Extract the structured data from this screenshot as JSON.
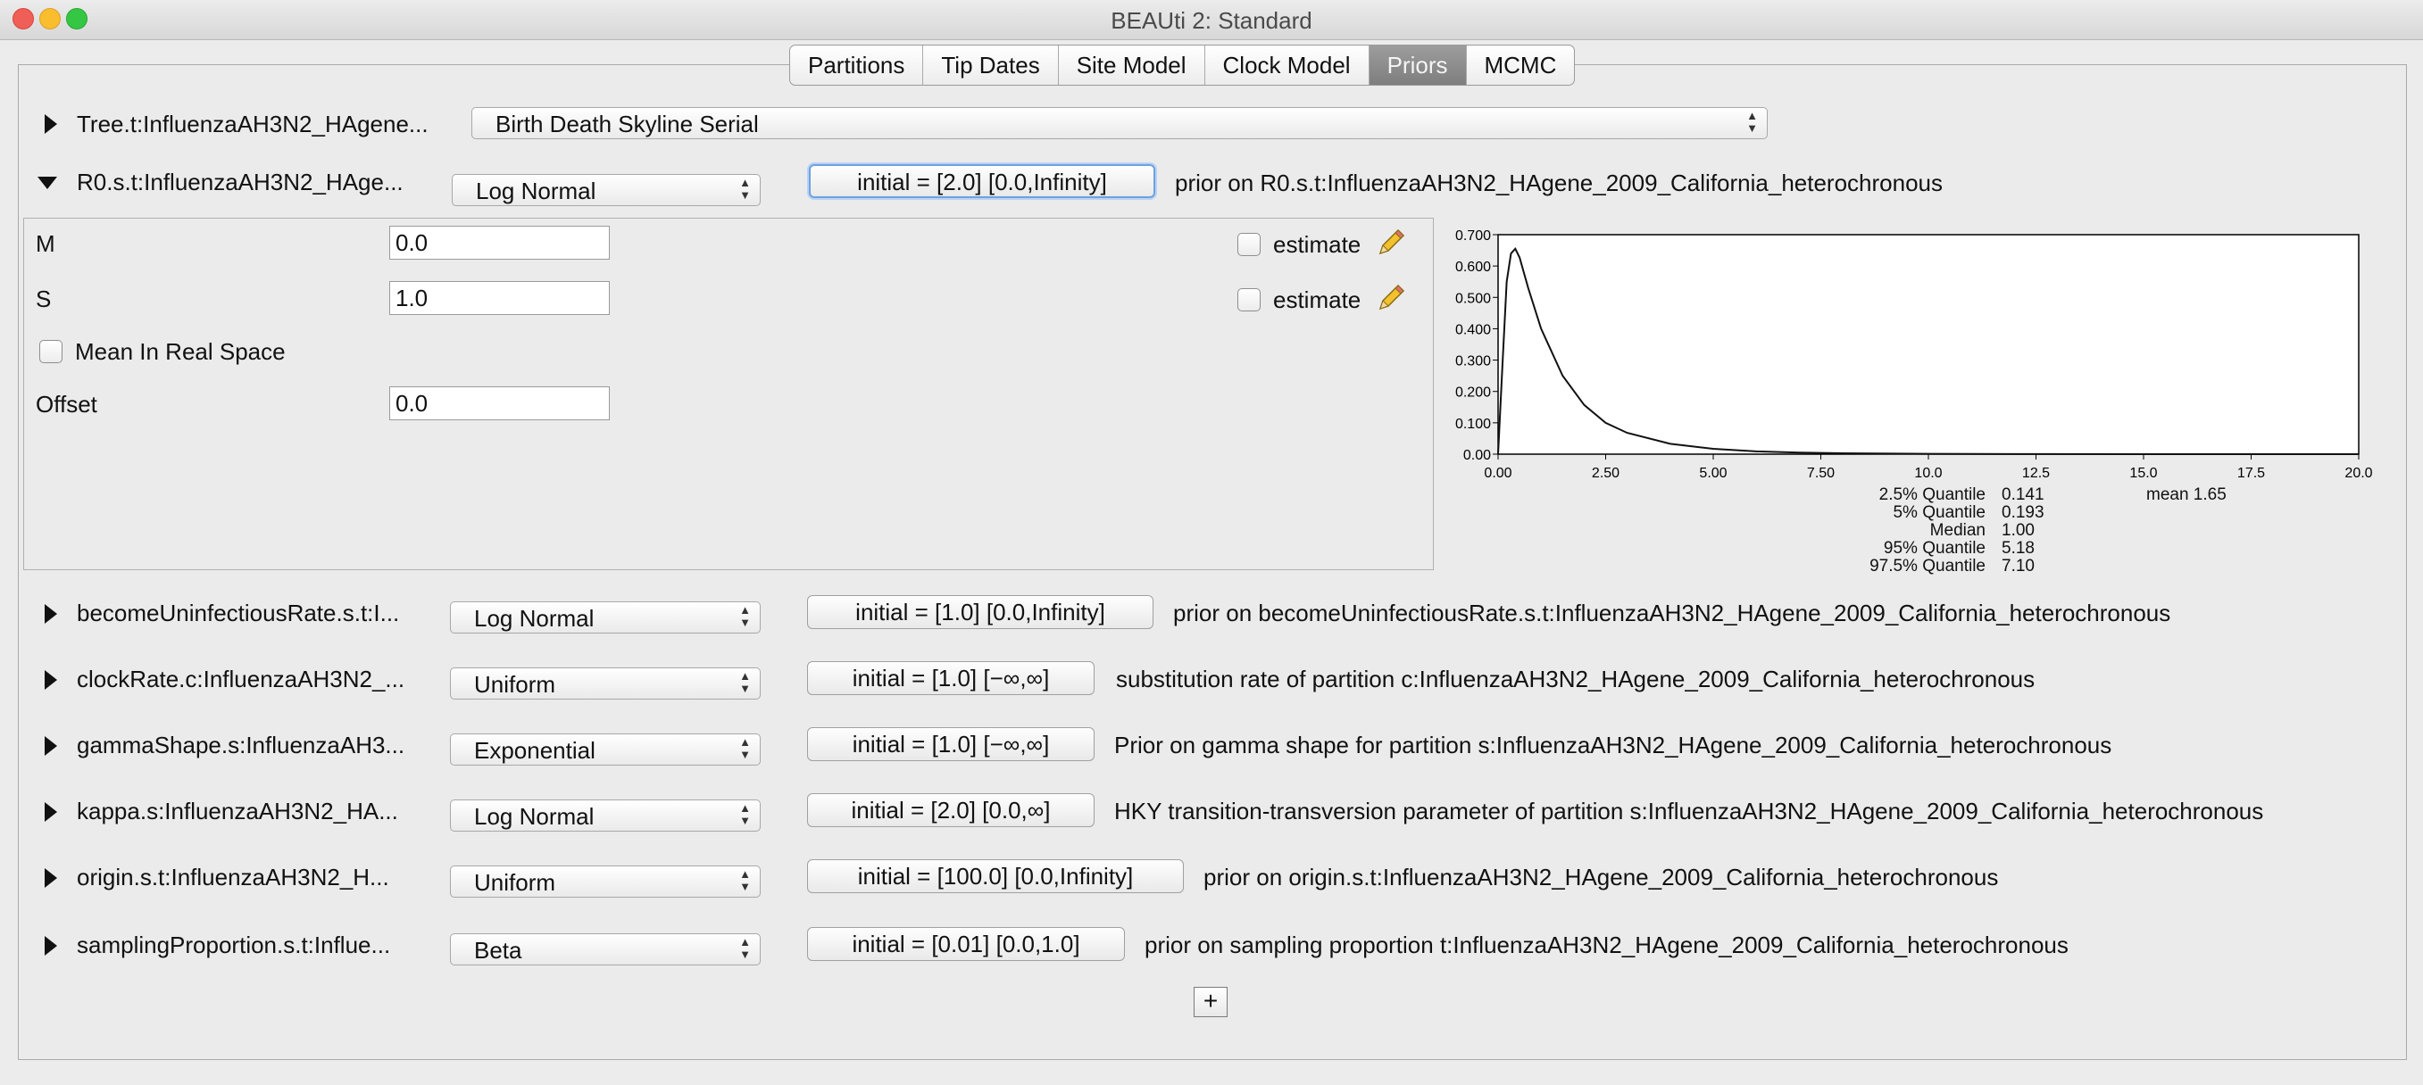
{
  "window": {
    "title": "BEAUti 2: Standard"
  },
  "tabs": [
    {
      "label": "Partitions"
    },
    {
      "label": "Tip Dates"
    },
    {
      "label": "Site Model"
    },
    {
      "label": "Clock Model"
    },
    {
      "label": "Priors",
      "selected": true
    },
    {
      "label": "MCMC"
    }
  ],
  "tree_prior": {
    "label": "Tree.t:InfluenzaAH3N2_HAgene...",
    "distribution": "Birth Death Skyline Serial"
  },
  "r0_prior": {
    "label": "R0.s.t:InfluenzaAH3N2_HAge...",
    "distribution": "Log Normal",
    "initial": "initial = [2.0] [0.0,Infinity]",
    "description": "prior on R0.s.t:InfluenzaAH3N2_HAgene_2009_California_heterochronous",
    "params": {
      "m_label": "M",
      "m_value": "0.0",
      "s_label": "S",
      "s_value": "1.0",
      "mean_real_label": "Mean In Real Space",
      "offset_label": "Offset",
      "offset_value": "0.0",
      "estimate_label": "estimate"
    }
  },
  "priors": [
    {
      "label": "becomeUninfectiousRate.s.t:I...",
      "distribution": "Log Normal",
      "initial": "initial = [1.0] [0.0,Infinity]",
      "description": "prior on becomeUninfectiousRate.s.t:InfluenzaAH3N2_HAgene_2009_California_heterochronous"
    },
    {
      "label": "clockRate.c:InfluenzaAH3N2_...",
      "distribution": "Uniform",
      "initial": "initial = [1.0] [−∞,∞]",
      "description": "substitution rate of partition c:InfluenzaAH3N2_HAgene_2009_California_heterochronous"
    },
    {
      "label": "gammaShape.s:InfluenzaAH3...",
      "distribution": "Exponential",
      "initial": "initial = [1.0] [−∞,∞]",
      "description": "Prior on gamma shape for partition s:InfluenzaAH3N2_HAgene_2009_California_heterochronous"
    },
    {
      "label": "kappa.s:InfluenzaAH3N2_HA...",
      "distribution": "Log Normal",
      "initial": "initial = [2.0] [0.0,∞]",
      "description": "HKY transition-transversion parameter of partition s:InfluenzaAH3N2_HAgene_2009_California_heterochronous"
    },
    {
      "label": "origin.s.t:InfluenzaAH3N2_H...",
      "distribution": "Uniform",
      "initial": "initial = [100.0] [0.0,Infinity]",
      "description": "prior on origin.s.t:InfluenzaAH3N2_HAgene_2009_California_heterochronous"
    },
    {
      "label": "samplingProportion.s.t:Influe...",
      "distribution": "Beta",
      "initial": "initial = [0.01] [0.0,1.0]",
      "description": "prior on sampling proportion t:InfluenzaAH3N2_HAgene_2009_California_heterochronous"
    }
  ],
  "add_button": {
    "label": "+"
  },
  "chart_data": {
    "type": "line",
    "title": "",
    "xlabel": "",
    "ylabel": "",
    "xlim": [
      0,
      20
    ],
    "ylim": [
      0,
      0.7
    ],
    "x_ticks": [
      "0.00",
      "2.50",
      "5.00",
      "7.50",
      "10.0",
      "12.5",
      "15.0",
      "17.5",
      "20.0"
    ],
    "y_ticks": [
      "0.00",
      "0.100",
      "0.200",
      "0.300",
      "0.400",
      "0.500",
      "0.600",
      "0.700"
    ],
    "series": [
      {
        "x": [
          0.0,
          0.1,
          0.2,
          0.3,
          0.4,
          0.5,
          0.7,
          1.0,
          1.5,
          2.0,
          2.5,
          3.0,
          4.0,
          5.0,
          6.0,
          7.0,
          8.0,
          10.0,
          12.0,
          15.0,
          20.0
        ],
        "y": [
          0.0,
          0.28,
          0.55,
          0.64,
          0.655,
          0.627,
          0.53,
          0.4,
          0.25,
          0.157,
          0.1,
          0.068,
          0.033,
          0.017,
          0.009,
          0.005,
          0.003,
          0.0012,
          0.0005,
          0.0001,
          0.0
        ]
      }
    ],
    "quantiles": [
      {
        "label": "2.5% Quantile",
        "value": "0.141"
      },
      {
        "label": "5% Quantile",
        "value": "0.193"
      },
      {
        "label": "Median",
        "value": "1.00"
      },
      {
        "label": "95% Quantile",
        "value": "5.18"
      },
      {
        "label": "97.5% Quantile",
        "value": "7.10"
      }
    ],
    "mean_text": "mean 1.65"
  },
  "colors": {
    "selected_tab": "#8a8a8a",
    "focus_ring": "#6ea1e0",
    "pencil": "#f2c12e"
  }
}
